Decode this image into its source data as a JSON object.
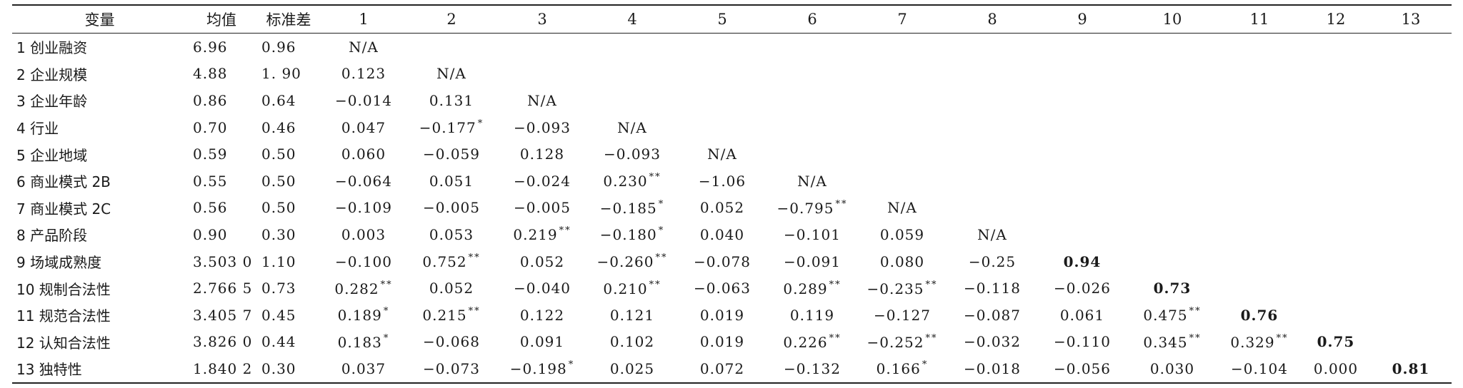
{
  "headers": [
    "变量",
    "均值",
    "标准差",
    "1",
    "2",
    "3",
    "4",
    "5",
    "6",
    "7",
    "8",
    "9",
    "10",
    "11",
    "12",
    "13"
  ],
  "rows": [
    {
      "name": "1 创业融资",
      "mean": "6.96",
      "sd": "0.96",
      "cells": [
        {
          "v": "N/A",
          "s": ""
        }
      ]
    },
    {
      "name": "2 企业规模",
      "mean": "4.88",
      "sd": "1. 90",
      "cells": [
        {
          "v": "0.123",
          "s": ""
        },
        {
          "v": "N/A",
          "s": ""
        }
      ]
    },
    {
      "name": "3 企业年龄",
      "mean": "0.86",
      "sd": "0.64",
      "cells": [
        {
          "v": "−0.014",
          "s": ""
        },
        {
          "v": "0.131",
          "s": ""
        },
        {
          "v": "N/A",
          "s": ""
        }
      ]
    },
    {
      "name": "4 行业",
      "mean": "0.70",
      "sd": "0.46",
      "cells": [
        {
          "v": "0.047",
          "s": ""
        },
        {
          "v": "−0.177",
          "s": "*"
        },
        {
          "v": "−0.093",
          "s": ""
        },
        {
          "v": "N/A",
          "s": ""
        }
      ]
    },
    {
      "name": "5 企业地域",
      "mean": "0.59",
      "sd": "0.50",
      "cells": [
        {
          "v": "0.060",
          "s": ""
        },
        {
          "v": "−0.059",
          "s": ""
        },
        {
          "v": "0.128",
          "s": ""
        },
        {
          "v": "−0.093",
          "s": ""
        },
        {
          "v": "N/A",
          "s": ""
        }
      ]
    },
    {
      "name": "6 商业模式 2B",
      "mean": "0.55",
      "sd": "0.50",
      "cells": [
        {
          "v": "−0.064",
          "s": ""
        },
        {
          "v": "0.051",
          "s": ""
        },
        {
          "v": "−0.024",
          "s": ""
        },
        {
          "v": "0.230",
          "s": "**"
        },
        {
          "v": "−1.06",
          "s": ""
        },
        {
          "v": "N/A",
          "s": ""
        }
      ]
    },
    {
      "name": "7 商业模式 2C",
      "mean": "0.56",
      "sd": "0.50",
      "cells": [
        {
          "v": "−0.109",
          "s": ""
        },
        {
          "v": "−0.005",
          "s": ""
        },
        {
          "v": "−0.005",
          "s": ""
        },
        {
          "v": "−0.185",
          "s": "*"
        },
        {
          "v": "0.052",
          "s": ""
        },
        {
          "v": "−0.795",
          "s": "**"
        },
        {
          "v": "N/A",
          "s": ""
        }
      ]
    },
    {
      "name": "8 产品阶段",
      "mean": "0.90",
      "sd": "0.30",
      "cells": [
        {
          "v": "0.003",
          "s": ""
        },
        {
          "v": "0.053",
          "s": ""
        },
        {
          "v": "0.219",
          "s": "**"
        },
        {
          "v": "−0.180",
          "s": "*"
        },
        {
          "v": "0.040",
          "s": ""
        },
        {
          "v": "−0.101",
          "s": ""
        },
        {
          "v": "0.059",
          "s": ""
        },
        {
          "v": "N/A",
          "s": ""
        }
      ]
    },
    {
      "name": "9 场域成熟度",
      "mean": "3.503 0",
      "sd": "1.10",
      "cells": [
        {
          "v": "−0.100",
          "s": ""
        },
        {
          "v": "0.752",
          "s": "**"
        },
        {
          "v": "0.052",
          "s": ""
        },
        {
          "v": "−0.260",
          "s": "**"
        },
        {
          "v": "−0.078",
          "s": ""
        },
        {
          "v": "−0.091",
          "s": ""
        },
        {
          "v": "0.080",
          "s": ""
        },
        {
          "v": "−0.25",
          "s": ""
        },
        {
          "v": "0.94",
          "s": "",
          "b": true
        }
      ]
    },
    {
      "name": "10 规制合法性",
      "mean": "2.766 5",
      "sd": "0.73",
      "cells": [
        {
          "v": "0.282",
          "s": "**"
        },
        {
          "v": "0.052",
          "s": ""
        },
        {
          "v": "−0.040",
          "s": ""
        },
        {
          "v": "0.210",
          "s": "**"
        },
        {
          "v": "−0.063",
          "s": ""
        },
        {
          "v": "0.289",
          "s": "**"
        },
        {
          "v": "−0.235",
          "s": "**"
        },
        {
          "v": "−0.118",
          "s": ""
        },
        {
          "v": "−0.026",
          "s": ""
        },
        {
          "v": "0.73",
          "s": "",
          "b": true
        }
      ]
    },
    {
      "name": "11 规范合法性",
      "mean": "3.405 7",
      "sd": "0.45",
      "cells": [
        {
          "v": "0.189",
          "s": "*"
        },
        {
          "v": "0.215",
          "s": "**"
        },
        {
          "v": "0.122",
          "s": ""
        },
        {
          "v": "0.121",
          "s": ""
        },
        {
          "v": "0.019",
          "s": ""
        },
        {
          "v": "0.119",
          "s": ""
        },
        {
          "v": "−0.127",
          "s": ""
        },
        {
          "v": "−0.087",
          "s": ""
        },
        {
          "v": "0.061",
          "s": ""
        },
        {
          "v": "0.475",
          "s": "**"
        },
        {
          "v": "0.76",
          "s": "",
          "b": true
        }
      ]
    },
    {
      "name": "12 认知合法性",
      "mean": "3.826 0",
      "sd": "0.44",
      "cells": [
        {
          "v": "0.183",
          "s": "*"
        },
        {
          "v": "−0.068",
          "s": ""
        },
        {
          "v": "0.091",
          "s": ""
        },
        {
          "v": "0.102",
          "s": ""
        },
        {
          "v": "0.019",
          "s": ""
        },
        {
          "v": "0.226",
          "s": "**"
        },
        {
          "v": "−0.252",
          "s": "**"
        },
        {
          "v": "−0.032",
          "s": ""
        },
        {
          "v": "−0.110",
          "s": ""
        },
        {
          "v": "0.345",
          "s": "**"
        },
        {
          "v": "0.329",
          "s": "**"
        },
        {
          "v": "0.75",
          "s": "",
          "b": true
        }
      ]
    },
    {
      "name": "13 独特性",
      "mean": "1.840 2",
      "sd": "0.30",
      "cells": [
        {
          "v": "0.037",
          "s": ""
        },
        {
          "v": "−0.073",
          "s": ""
        },
        {
          "v": "−0.198",
          "s": "*"
        },
        {
          "v": "0.025",
          "s": ""
        },
        {
          "v": "0.072",
          "s": ""
        },
        {
          "v": "−0.132",
          "s": ""
        },
        {
          "v": "0.166",
          "s": "*"
        },
        {
          "v": "−0.018",
          "s": ""
        },
        {
          "v": "−0.056",
          "s": ""
        },
        {
          "v": "0.030",
          "s": ""
        },
        {
          "v": "−0.104",
          "s": ""
        },
        {
          "v": "0.000",
          "s": ""
        },
        {
          "v": "0.81",
          "s": "",
          "b": true
        }
      ]
    }
  ]
}
